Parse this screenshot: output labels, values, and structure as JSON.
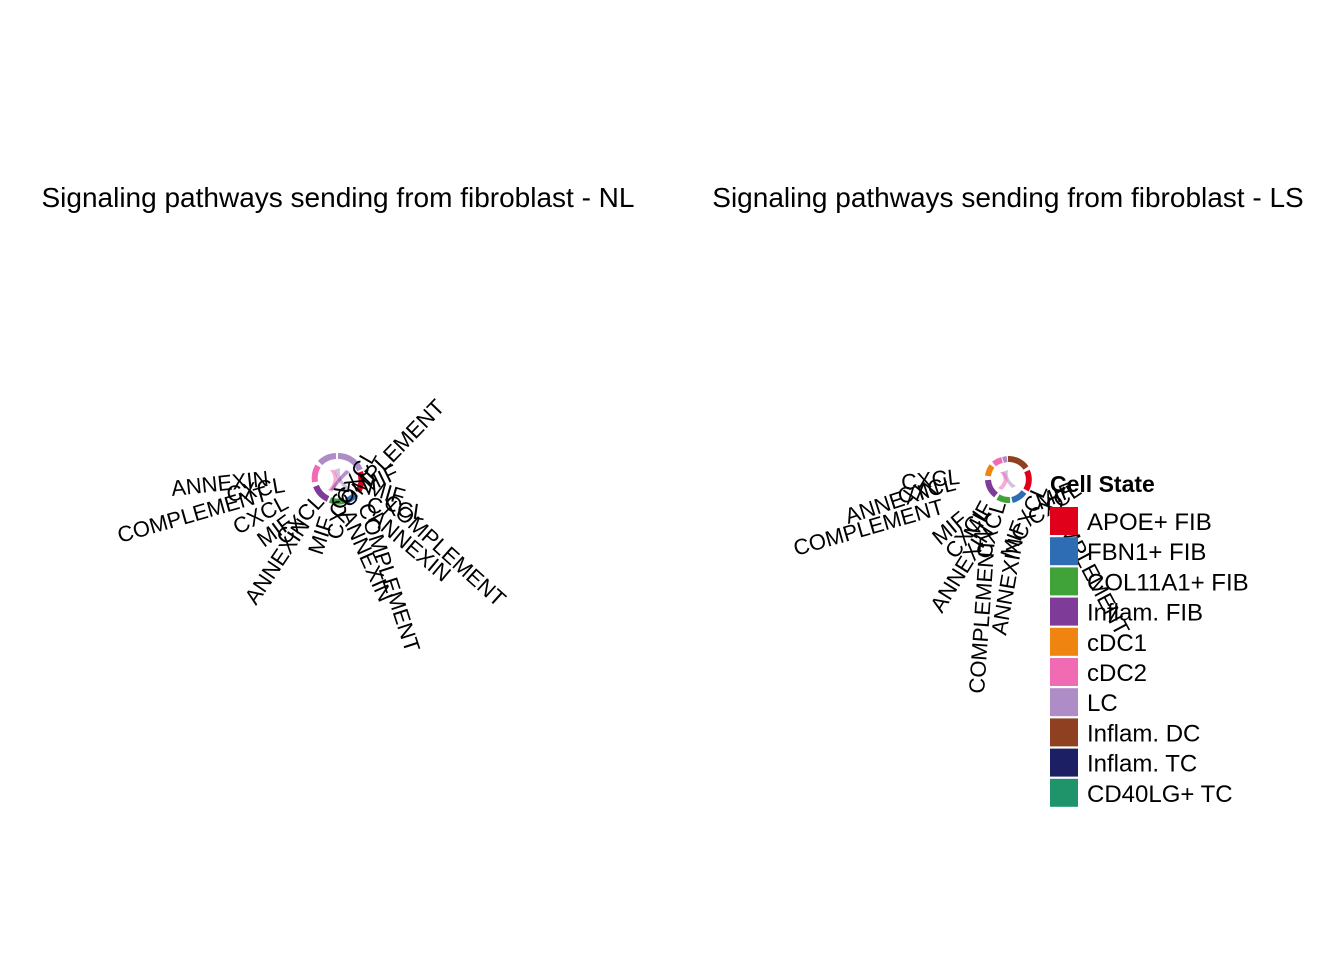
{
  "panels": [
    {
      "title": "Signaling pathways sending from fibroblast - NL",
      "labels": [
        "ANNEXIN",
        "CXCL",
        "COMPLEMENT",
        "CXCL",
        "MIF",
        "CXCL",
        "ANNEXIN",
        "MIF",
        "CXCL",
        "COMPLEMENT",
        "ANNEXIN",
        "CXCL",
        "COMPLEMENT",
        "MIF",
        "CXCL",
        "ANNEXIN",
        "COMPLEMENT",
        "MIF"
      ]
    },
    {
      "title": "Signaling pathways sending from fibroblast - LS",
      "labels": [
        "CXCL",
        "ANNEXIN",
        "CXCL",
        "COMPLEMENT",
        "MIF",
        "CXCL",
        "ANNEXIN",
        "MIF",
        "CXCL",
        "COMPLEMENT",
        "ANNEXIN",
        "MIF",
        "CXCL",
        "COMPLEMENT",
        "CXCL",
        "MIF"
      ]
    }
  ],
  "legend": {
    "title": "Cell State",
    "items": [
      {
        "label": "APOE+ FIB",
        "color": "#E0001A"
      },
      {
        "label": "FBN1+ FIB",
        "color": "#2E6DB4"
      },
      {
        "label": "COL11A1+ FIB",
        "color": "#3FA33A"
      },
      {
        "label": "Inflam. FIB",
        "color": "#7E3B98"
      },
      {
        "label": "cDC1",
        "color": "#F08410"
      },
      {
        "label": "cDC2",
        "color": "#F06BB4"
      },
      {
        "label": "LC",
        "color": "#AE8CC6"
      },
      {
        "label": "Inflam. DC",
        "color": "#8E4020"
      },
      {
        "label": "Inflam. TC",
        "color": "#1C1F63"
      },
      {
        "label": "CD40LG+ TC",
        "color": "#1F936A"
      }
    ]
  }
}
